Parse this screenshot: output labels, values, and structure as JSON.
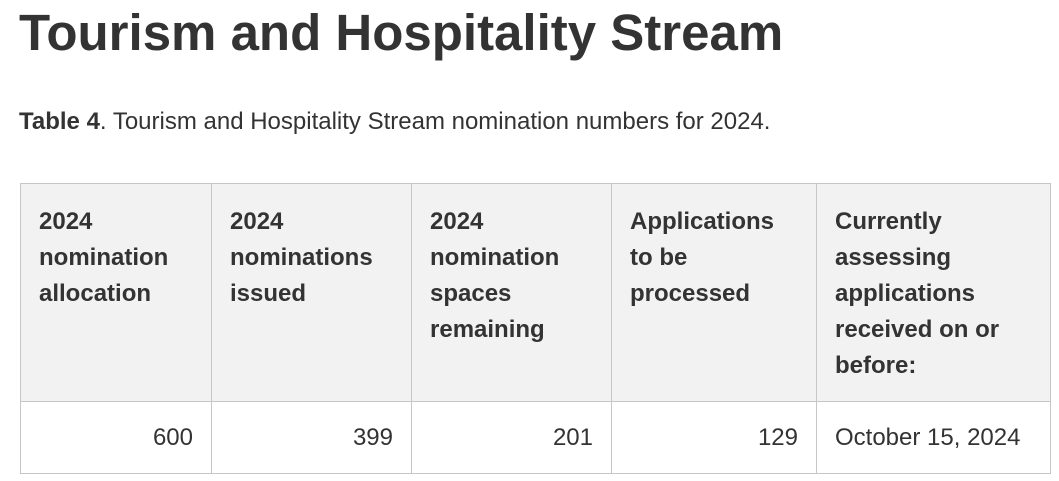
{
  "page": {
    "title": "Tourism and Hospitality Stream"
  },
  "caption": {
    "label": "Table 4",
    "text": ". Tourism and Hospitality Stream nomination numbers for 2024."
  },
  "table": {
    "headers": [
      "2024 nomination allocation",
      "2024 nominations issued",
      "2024 nomination spaces remaining",
      "Applications to be processed",
      "Currently assessing applications received on or before:"
    ],
    "rows": [
      [
        "600",
        "399",
        "201",
        "129",
        "October 15, 2024"
      ]
    ]
  },
  "colors": {
    "text": "#333333",
    "header_background": "#f2f2f2",
    "border": "#c6c6c6"
  }
}
